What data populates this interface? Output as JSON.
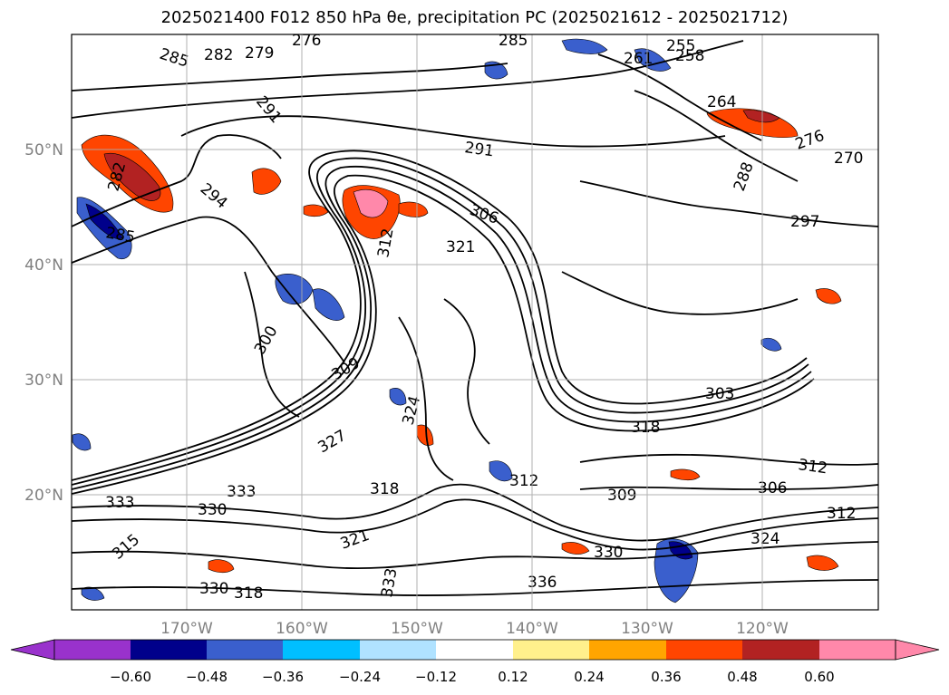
{
  "title": "2025021400 F012 850 hPa θe, precipitation PC (2025021612 - 2025021712)",
  "map": {
    "lat_ticks": [
      "50°N",
      "40°N",
      "30°N",
      "20°N"
    ],
    "lon_ticks": [
      "170°W",
      "160°W",
      "150°W",
      "140°W",
      "130°W",
      "120°W"
    ],
    "lon_range": [
      -180,
      -110
    ],
    "lat_range": [
      10,
      60
    ],
    "grid": true,
    "contour_labels": [
      "285",
      "282",
      "279",
      "276",
      "285",
      "255",
      "261",
      "258",
      "264",
      "291",
      "294",
      "282",
      "285",
      "306",
      "321",
      "312",
      "300",
      "309",
      "303",
      "318",
      "324",
      "312",
      "312",
      "306",
      "309",
      "333",
      "330",
      "333",
      "330",
      "327",
      "321",
      "318",
      "336",
      "333",
      "330",
      "324",
      "312",
      "297",
      "318",
      "315",
      "291",
      "276",
      "270",
      "288"
    ]
  },
  "colorbar": {
    "ticks": [
      "−0.60",
      "−0.48",
      "−0.36",
      "−0.24",
      "−0.12",
      "0.12",
      "0.24",
      "0.36",
      "0.48",
      "0.60"
    ],
    "colors": [
      "#9932cc",
      "#00008b",
      "#3a5fcd",
      "#00bfff",
      "#b0e2ff",
      "#ffffff",
      "#fff08c",
      "#ffa500",
      "#ff4500",
      "#b22222",
      "#ff88aa"
    ]
  },
  "palette": {
    "blue_dark": "#00008b",
    "blue_mid": "#3a5fcd",
    "blue_sky": "#00bfff",
    "blue_pale": "#b0e2ff",
    "yellow": "#fff08c",
    "orange": "#ffa500",
    "red_orange": "#ff4500",
    "firebrick": "#b22222",
    "pink": "#ff88aa",
    "grid": "#aaaaaa",
    "contour": "#000000"
  }
}
